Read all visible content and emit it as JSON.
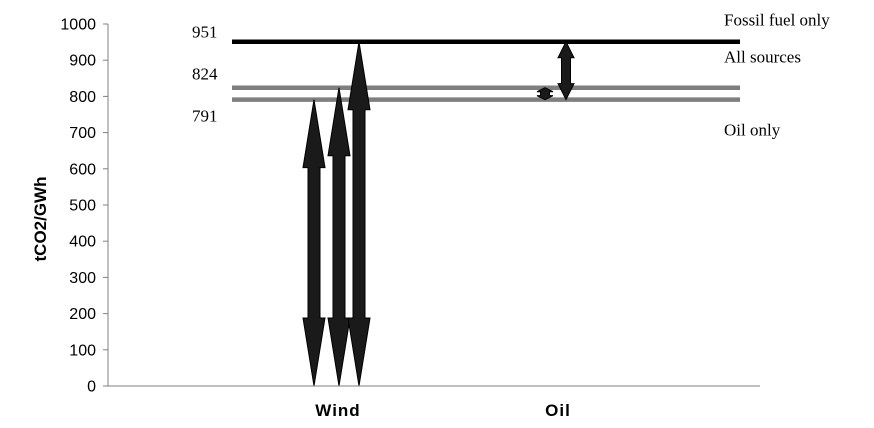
{
  "chart_data": {
    "type": "line",
    "title": "",
    "xlabel": "",
    "ylabel": "tCO2/GWh",
    "ylim": [
      0,
      1000
    ],
    "yticks": [
      0,
      100,
      200,
      300,
      400,
      500,
      600,
      700,
      800,
      900,
      1000
    ],
    "categories": [
      "Wind",
      "Oil"
    ],
    "reference_lines": [
      {
        "name": "Fossil fuel only",
        "value": 951,
        "value_label": "951",
        "color": "#000000"
      },
      {
        "name": "All sources",
        "value": 824,
        "value_label": "824",
        "color": "#7f7f7f"
      },
      {
        "name": "Oil only",
        "value": 791,
        "value_label": "791",
        "color": "#7f7f7f"
      }
    ],
    "arrows": [
      {
        "category": "Wind",
        "from": 0,
        "to": 791
      },
      {
        "category": "Wind",
        "from": 0,
        "to": 824
      },
      {
        "category": "Wind",
        "from": 0,
        "to": 951
      },
      {
        "category": "Oil",
        "from": 791,
        "to": 824
      },
      {
        "category": "Oil",
        "from": 791,
        "to": 951
      }
    ],
    "colors": {
      "axis": "#808080",
      "arrow": "#1a1a1a"
    }
  }
}
